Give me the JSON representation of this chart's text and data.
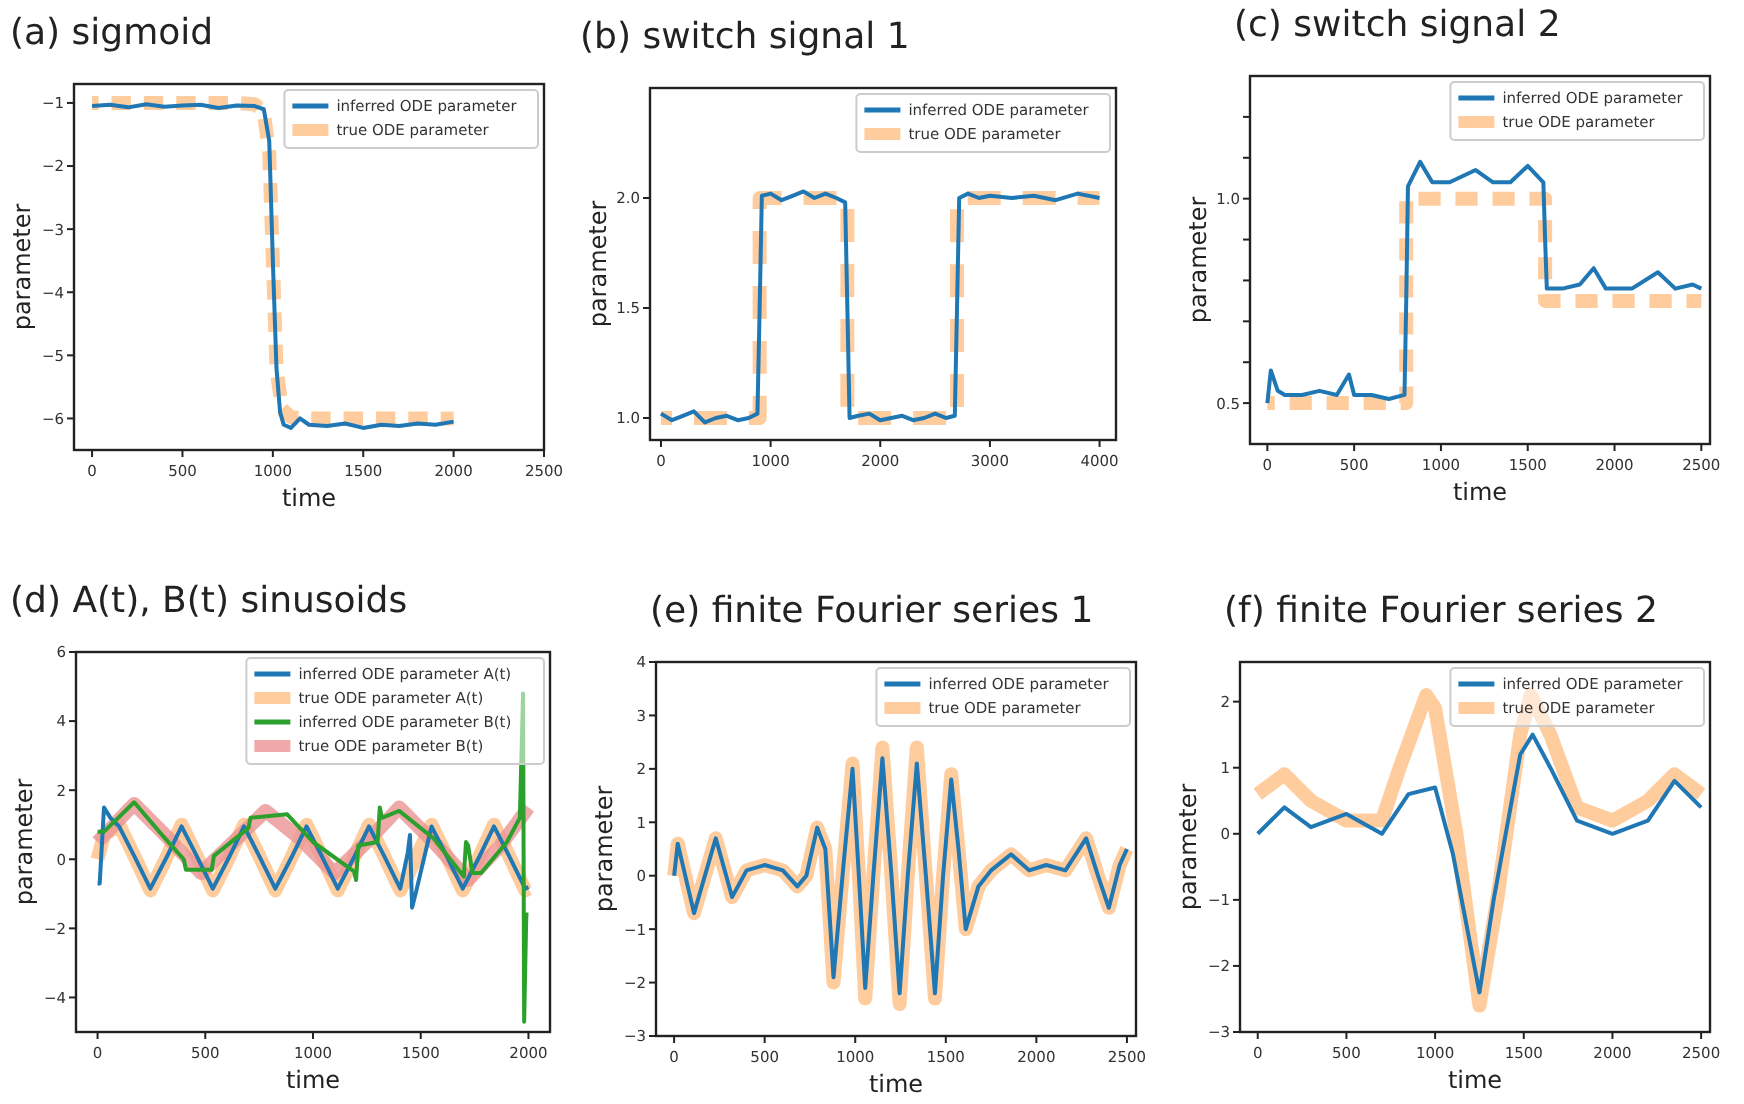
{
  "chart_data": [
    {
      "type": "line",
      "title": "(a) sigmoid",
      "xlabel": "time",
      "ylabel": "parameter",
      "xlim": [
        -100,
        2500
      ],
      "xticks": [
        0,
        500,
        1000,
        1500,
        2000,
        2500
      ],
      "ylim": [
        -6.5,
        -0.7
      ],
      "yticks": [
        -6,
        -5,
        -4,
        -3,
        -2,
        -1
      ],
      "legend": "top right",
      "grid": false,
      "series": [
        {
          "name": "inferred ODE parameter",
          "color": "#1f77b4",
          "x": [
            0,
            100,
            200,
            300,
            400,
            500,
            600,
            700,
            800,
            900,
            950,
            980,
            1000,
            1020,
            1040,
            1060,
            1100,
            1150,
            1200,
            1300,
            1400,
            1500,
            1600,
            1700,
            1800,
            1900,
            2000
          ],
          "values": [
            -1.05,
            -1.03,
            -1.07,
            -1.02,
            -1.06,
            -1.04,
            -1.03,
            -1.08,
            -1.04,
            -1.05,
            -1.1,
            -1.6,
            -3.5,
            -5.2,
            -5.9,
            -6.1,
            -6.15,
            -6.0,
            -6.1,
            -6.12,
            -6.08,
            -6.15,
            -6.1,
            -6.12,
            -6.08,
            -6.1,
            -6.05
          ]
        },
        {
          "name": "true ODE parameter",
          "color": "#ffbf86",
          "line_style": "dashed",
          "x": [
            0,
            200,
            400,
            600,
            800,
            900,
            950,
            980,
            1000,
            1020,
            1050,
            1100,
            1200,
            1400,
            1600,
            1800,
            2000
          ],
          "values": [
            -1,
            -1,
            -1,
            -1,
            -1,
            -1.02,
            -1.15,
            -1.8,
            -3.5,
            -5.2,
            -5.85,
            -5.98,
            -6,
            -6,
            -6,
            -6,
            -6
          ]
        }
      ]
    },
    {
      "type": "line",
      "title": "(b) switch signal 1",
      "ylabel": "parameter",
      "xlim": [
        -100,
        4150
      ],
      "xticks": [
        0,
        1000,
        2000,
        3000,
        4000
      ],
      "ylim": [
        0.9,
        2.5
      ],
      "yticks": [
        {
          "value": 1,
          "label": "1.0"
        },
        {
          "value": 1.5,
          "label": "1.5"
        },
        {
          "value": 2,
          "label": "2.0"
        }
      ],
      "legend": "top right",
      "grid": false,
      "series": [
        {
          "name": "inferred ODE parameter",
          "color": "#1f77b4",
          "x": [
            0,
            100,
            200,
            300,
            400,
            500,
            600,
            700,
            800,
            880,
            900,
            920,
            1000,
            1100,
            1200,
            1300,
            1400,
            1500,
            1600,
            1680,
            1700,
            1720,
            1800,
            1900,
            2000,
            2100,
            2200,
            2300,
            2400,
            2500,
            2600,
            2680,
            2700,
            2720,
            2800,
            2900,
            3000,
            3200,
            3400,
            3600,
            3800,
            4000
          ],
          "values": [
            1.02,
            0.99,
            1.01,
            1.03,
            0.98,
            1.0,
            1.01,
            0.99,
            1.0,
            1.02,
            1.5,
            2.01,
            2.02,
            1.99,
            2.01,
            2.03,
            2.0,
            2.02,
            2.0,
            1.98,
            1.5,
            1.0,
            1.01,
            1.02,
            0.99,
            1.0,
            1.01,
            0.99,
            1.0,
            1.02,
            1.0,
            1.01,
            1.5,
            2.0,
            2.02,
            2.0,
            2.01,
            2.0,
            2.01,
            1.99,
            2.02,
            2.0
          ]
        },
        {
          "name": "true ODE parameter",
          "color": "#ffbf86",
          "line_style": "dashed",
          "x": [
            0,
            900,
            900,
            1700,
            1700,
            2700,
            2700,
            4000
          ],
          "values": [
            1,
            1,
            2,
            2,
            1,
            1,
            2,
            2
          ]
        }
      ]
    },
    {
      "type": "line",
      "title": "(c) switch signal 2",
      "xlabel": "time",
      "ylabel": "parameter",
      "xlim": [
        -100,
        2550
      ],
      "xticks": [
        0,
        500,
        1000,
        1500,
        2000,
        2500
      ],
      "ylim": [
        0.4,
        1.3
      ],
      "yticks": [
        {
          "value": 0.5,
          "label": "0.5"
        },
        {
          "value": 0.6,
          "label": null
        },
        {
          "value": 0.7,
          "label": null
        },
        {
          "value": 0.8,
          "label": null
        },
        {
          "value": 0.9,
          "label": null
        },
        {
          "value": 1,
          "label": "1.0"
        },
        {
          "value": 1.1,
          "label": null
        },
        {
          "value": 1.2,
          "label": null
        }
      ],
      "legend": "top right",
      "grid": false,
      "series": [
        {
          "name": "inferred ODE parameter",
          "color": "#1f77b4",
          "x": [
            0,
            20,
            60,
            100,
            200,
            300,
            400,
            470,
            500,
            600,
            700,
            790,
            800,
            810,
            880,
            950,
            1050,
            1200,
            1300,
            1400,
            1500,
            1590,
            1600,
            1610,
            1700,
            1800,
            1880,
            1950,
            2100,
            2250,
            2350,
            2450,
            2500
          ],
          "values": [
            0.5,
            0.58,
            0.53,
            0.52,
            0.52,
            0.53,
            0.52,
            0.57,
            0.52,
            0.52,
            0.51,
            0.52,
            0.75,
            1.03,
            1.09,
            1.04,
            1.04,
            1.07,
            1.04,
            1.04,
            1.08,
            1.04,
            0.9,
            0.78,
            0.78,
            0.79,
            0.83,
            0.78,
            0.78,
            0.82,
            0.78,
            0.79,
            0.78
          ]
        },
        {
          "name": "true ODE parameter",
          "color": "#ffbf86",
          "line_style": "dashed",
          "x": [
            0,
            800,
            800,
            1600,
            1600,
            2500
          ],
          "values": [
            0.5,
            0.5,
            1,
            1,
            0.75,
            0.75
          ]
        }
      ]
    },
    {
      "type": "line",
      "title": "(d) A(t), B(t) sinusoids",
      "xlabel": "time",
      "ylabel": "parameter",
      "xlim": [
        -100,
        2100
      ],
      "xticks": [
        0,
        500,
        1000,
        1500,
        2000
      ],
      "ylim": [
        -5,
        6
      ],
      "yticks": [
        -4,
        -2,
        0,
        2,
        4,
        6
      ],
      "legend": "top right",
      "grid": false,
      "series": [
        {
          "name": "inferred ODE parameter A(t)",
          "color": "#1f77b4",
          "x": [
            0,
            10,
            30,
            60,
            100,
            170,
            245,
            320,
            390,
            460,
            535,
            610,
            680,
            750,
            825,
            900,
            970,
            1040,
            1115,
            1190,
            1260,
            1330,
            1405,
            1440,
            1450,
            1460,
            1480,
            1550,
            1620,
            1695,
            1770,
            1840,
            1910,
            1985,
            2000
          ],
          "values": [
            -0.7,
            -0.7,
            1.5,
            1.2,
            0.95,
            0.1,
            -0.85,
            0.05,
            0.95,
            0.1,
            -0.85,
            0.05,
            0.95,
            0.1,
            -0.85,
            0.05,
            0.95,
            0.1,
            -0.85,
            0.05,
            0.95,
            0.1,
            -0.85,
            0.2,
            0.7,
            -1.4,
            -0.9,
            0.95,
            0.1,
            -0.85,
            0.05,
            0.95,
            0.1,
            -0.85,
            -0.8
          ]
        },
        {
          "name": "true ODE parameter A(t)",
          "color": "#ffbf86",
          "x": [
            0,
            30,
            100,
            170,
            245,
            320,
            390,
            460,
            535,
            610,
            680,
            750,
            825,
            900,
            970,
            1040,
            1115,
            1190,
            1260,
            1330,
            1405,
            1480,
            1550,
            1620,
            1695,
            1770,
            1840,
            1910,
            1985,
            2000
          ],
          "values": [
            0,
            0.7,
            1,
            0.1,
            -0.9,
            0.05,
            1,
            0.1,
            -0.9,
            0.05,
            1,
            0.1,
            -0.9,
            0.05,
            1,
            0.1,
            -0.9,
            0.05,
            1,
            0.1,
            -0.9,
            0.05,
            1,
            0.1,
            -0.9,
            0.05,
            1,
            0.1,
            -0.9,
            -0.85
          ]
        },
        {
          "name": "inferred ODE parameter B(t)",
          "color": "#2ca02c",
          "x": [
            0,
            30,
            170,
            300,
            400,
            410,
            530,
            540,
            700,
            710,
            880,
            1000,
            1190,
            1200,
            1210,
            1300,
            1310,
            1320,
            1400,
            1560,
            1700,
            1710,
            1720,
            1740,
            1780,
            1900,
            1960,
            1975,
            1980,
            1990,
            2000
          ],
          "values": [
            0.8,
            0.8,
            1.65,
            0.7,
            0,
            -0.3,
            -0.3,
            0.1,
            0.9,
            1.2,
            1.3,
            0.5,
            -0.35,
            -0.6,
            0.4,
            0.5,
            1.5,
            1.2,
            1.4,
            0.6,
            -0.5,
            0.5,
            0.4,
            -0.4,
            -0.4,
            0.5,
            1.2,
            4.8,
            -4.7,
            -1.6,
            -1.6
          ]
        },
        {
          "name": "true ODE parameter B(t)",
          "color": "#eb9393",
          "x": [
            0,
            170,
            330,
            480,
            630,
            780,
            940,
            1100,
            1250,
            1400,
            1560,
            1720,
            1870,
            2000
          ],
          "values": [
            0.5,
            1.6,
            0.6,
            -0.4,
            0.5,
            1.4,
            0.6,
            -0.4,
            0.5,
            1.5,
            0.5,
            -0.6,
            0.4,
            1.5
          ]
        }
      ]
    },
    {
      "type": "line",
      "title": "(e) finite Fourier series 1",
      "xlabel": "time",
      "ylabel": "parameter",
      "xlim": [
        -100,
        2550
      ],
      "xticks": [
        0,
        500,
        1000,
        1500,
        2000,
        2500
      ],
      "ylim": [
        -3,
        4
      ],
      "yticks": [
        -3,
        -2,
        -1,
        0,
        1,
        2,
        3,
        4
      ],
      "legend": "top right",
      "grid": false,
      "series": [
        {
          "name": "inferred ODE parameter",
          "color": "#1f77b4",
          "x": [
            0,
            20,
            110,
            230,
            320,
            400,
            500,
            600,
            680,
            730,
            790,
            835,
            880,
            935,
            985,
            1020,
            1055,
            1100,
            1150,
            1200,
            1245,
            1290,
            1340,
            1390,
            1440,
            1485,
            1530,
            1570,
            1610,
            1680,
            1750,
            1860,
            1960,
            2055,
            2160,
            2275,
            2340,
            2400,
            2460,
            2500
          ],
          "values": [
            0,
            0.6,
            -0.7,
            0.7,
            -0.4,
            0.1,
            0.2,
            0.1,
            -0.2,
            0,
            0.9,
            0.5,
            -1.9,
            0.2,
            2.0,
            0,
            -2.1,
            0,
            2.2,
            0,
            -2.2,
            0,
            2.1,
            0,
            -2.2,
            0,
            1.8,
            0.5,
            -1.0,
            -0.2,
            0.1,
            0.4,
            0.1,
            0.2,
            0.1,
            0.7,
            0,
            -0.6,
            0.2,
            0.5
          ]
        },
        {
          "name": "true ODE parameter",
          "color": "#ffbf86",
          "x": [
            0,
            20,
            110,
            230,
            320,
            400,
            500,
            600,
            680,
            730,
            790,
            835,
            880,
            935,
            985,
            1020,
            1055,
            1100,
            1150,
            1200,
            1245,
            1290,
            1340,
            1390,
            1440,
            1485,
            1530,
            1570,
            1610,
            1680,
            1750,
            1860,
            1960,
            2055,
            2160,
            2275,
            2340,
            2400,
            2460,
            2500
          ],
          "values": [
            0,
            0.6,
            -0.7,
            0.7,
            -0.4,
            0.1,
            0.2,
            0.1,
            -0.2,
            0,
            0.9,
            0.5,
            -2.0,
            0.2,
            2.1,
            0,
            -2.3,
            0,
            2.4,
            0,
            -2.4,
            0,
            2.4,
            0,
            -2.3,
            0,
            1.9,
            0.5,
            -1.0,
            -0.2,
            0.1,
            0.4,
            0.1,
            0.2,
            0.1,
            0.7,
            0,
            -0.6,
            0.2,
            0.5
          ]
        }
      ]
    },
    {
      "type": "line",
      "title": "(f) finite Fourier series 2",
      "xlabel": "time",
      "ylabel": "parameter",
      "xlim": [
        -100,
        2550
      ],
      "xticks": [
        0,
        500,
        1000,
        1500,
        2000,
        2500
      ],
      "ylim": [
        -3,
        2.6
      ],
      "yticks": [
        -3,
        -2,
        -1,
        0,
        1,
        2
      ],
      "legend": "top right",
      "grid": false,
      "series": [
        {
          "name": "inferred ODE parameter",
          "color": "#1f77b4",
          "x": [
            0,
            150,
            300,
            500,
            700,
            850,
            1000,
            1100,
            1250,
            1330,
            1480,
            1550,
            1650,
            1800,
            2000,
            2200,
            2350,
            2500
          ],
          "values": [
            0,
            0.4,
            0.1,
            0.3,
            0,
            0.6,
            0.7,
            -0.3,
            -2.4,
            -1,
            1.2,
            1.5,
            1.0,
            0.2,
            0,
            0.2,
            0.8,
            0.4
          ]
        },
        {
          "name": "true ODE parameter",
          "color": "#ffbf86",
          "x": [
            0,
            150,
            300,
            500,
            700,
            800,
            950,
            1000,
            1120,
            1250,
            1350,
            1480,
            1540,
            1650,
            1800,
            2000,
            2200,
            2350,
            2500
          ],
          "values": [
            0.6,
            0.9,
            0.5,
            0.2,
            0.2,
            1,
            2.1,
            1.9,
            0,
            -2.6,
            -1,
            1.5,
            2.1,
            1.5,
            0.4,
            0.2,
            0.5,
            0.9,
            0.6
          ]
        }
      ]
    }
  ]
}
